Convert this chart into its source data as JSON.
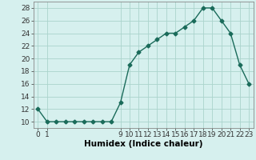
{
  "x": [
    0,
    1,
    2,
    3,
    4,
    5,
    6,
    7,
    8,
    9,
    10,
    11,
    12,
    13,
    14,
    15,
    16,
    17,
    18,
    19,
    20,
    21,
    22,
    23
  ],
  "y": [
    12,
    10,
    10,
    10,
    10,
    10,
    10,
    10,
    10,
    13,
    19,
    21,
    22,
    23,
    24,
    24,
    25,
    26,
    28,
    28,
    26,
    24,
    19,
    16
  ],
  "line_color": "#1a6b5a",
  "marker": "D",
  "marker_size": 2.5,
  "bg_color": "#d6f0ee",
  "grid_color": "#aad4cc",
  "xlabel": "Humidex (Indice chaleur)",
  "xlim": [
    -0.5,
    23.5
  ],
  "ylim": [
    9,
    29
  ],
  "xticks": [
    0,
    1,
    9,
    10,
    11,
    12,
    13,
    14,
    15,
    16,
    17,
    18,
    19,
    20,
    21,
    22,
    23
  ],
  "yticks": [
    10,
    12,
    14,
    16,
    18,
    20,
    22,
    24,
    26,
    28
  ],
  "tick_fontsize": 6.5,
  "xlabel_fontsize": 7.5,
  "line_width": 1.0
}
